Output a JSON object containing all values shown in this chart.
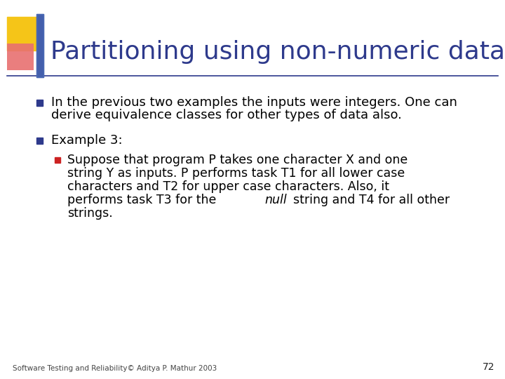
{
  "title": "Partitioning using non-numeric data",
  "title_color": "#2E3A8C",
  "title_fontsize": 26,
  "bg_color": "#FFFFFF",
  "bullet1_line1": "In the previous two examples the inputs were integers. One can",
  "bullet1_line2": "derive equivalence classes for other types of data also.",
  "bullet2_head": "Example 3:",
  "sub_line1": "Suppose that program P takes one character X and one",
  "sub_line2": "string Y as inputs. P performs task T1 for all lower case",
  "sub_line3": "characters and T2 for upper case characters. Also, it",
  "sub_line4_pre": "performs task T3 for the ",
  "sub_line4_italic": "null",
  "sub_line4_post": "string and T4 for all other",
  "sub_line5": "strings.",
  "footer": "Software Testing and Reliability© Aditya P. Mathur 2003",
  "page_num": "72",
  "bullet_color1": "#2E3A8C",
  "bullet_color2": "#CC2222",
  "text_color": "#000000",
  "line_color": "#2E3A8C",
  "deco_gold": "#F5C518",
  "deco_red": "#E87070",
  "deco_blue": "#2E3A8C",
  "body_fontsize": 13,
  "sub_fontsize": 12.5
}
